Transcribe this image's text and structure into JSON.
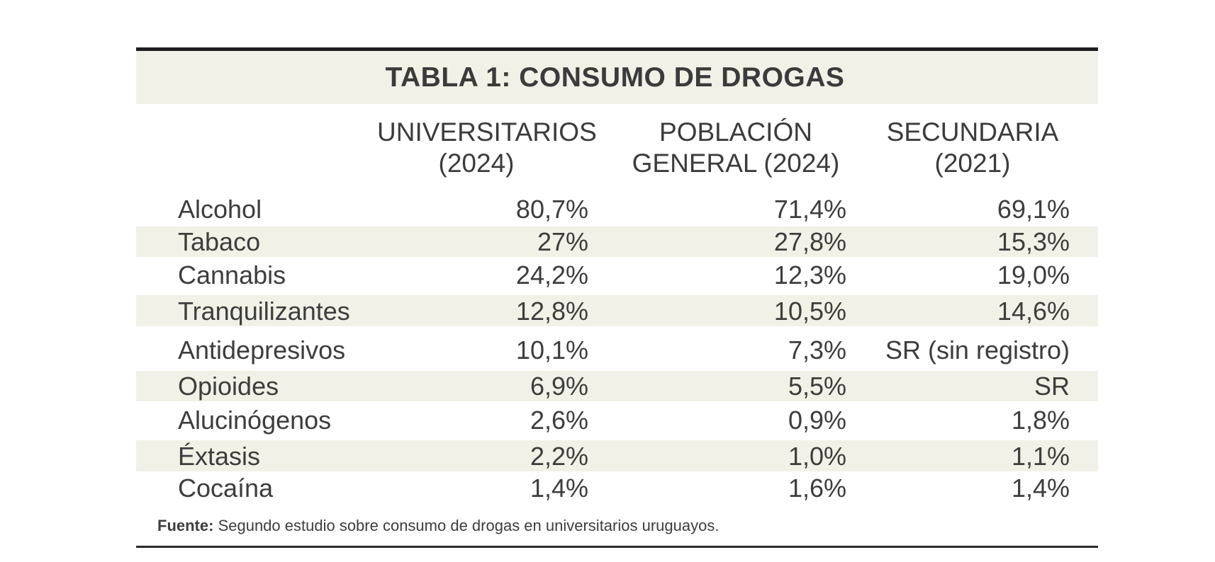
{
  "table": {
    "title": "TABLA 1: CONSUMO DE DROGAS",
    "columns": [
      {
        "line1": "UNIVERSITARIOS",
        "line2": "(2024)"
      },
      {
        "line1": "POBLACIÓN",
        "line2": "GENERAL (2024)"
      },
      {
        "line1": "SECUNDARIA",
        "line2": "(2021)"
      }
    ],
    "rows": [
      {
        "label": "Alcohol",
        "values": [
          "80,7%",
          "71,4%",
          "69,1%"
        ]
      },
      {
        "label": "Tabaco",
        "values": [
          "27%",
          "27,8%",
          "15,3%"
        ]
      },
      {
        "label": "Cannabis",
        "values": [
          "24,2%",
          "12,3%",
          "19,0%"
        ]
      },
      {
        "label": "Tranquilizantes",
        "values": [
          "12,8%",
          "10,5%",
          "14,6%"
        ]
      },
      {
        "label": "Antidepresivos",
        "values": [
          "10,1%",
          "7,3%",
          "SR (sin registro)"
        ]
      },
      {
        "label": "Opioides",
        "values": [
          "6,9%",
          "5,5%",
          "SR"
        ]
      },
      {
        "label": "Alucinógenos",
        "values": [
          "2,6%",
          "0,9%",
          "1,8%"
        ]
      },
      {
        "label": "Éxtasis",
        "values": [
          "2,2%",
          "1,0%",
          "1,1%"
        ]
      },
      {
        "label": "Cocaína",
        "values": [
          "1,4%",
          "1,6%",
          "1,4%"
        ]
      }
    ]
  },
  "source": {
    "label": "Fuente:",
    "text": " Segundo estudio sobre consumo de drogas en universitarios uruguayos."
  },
  "colors": {
    "band": "#f1f1e7",
    "rule": "#1e1e1e",
    "text": "#3d3d3d"
  }
}
